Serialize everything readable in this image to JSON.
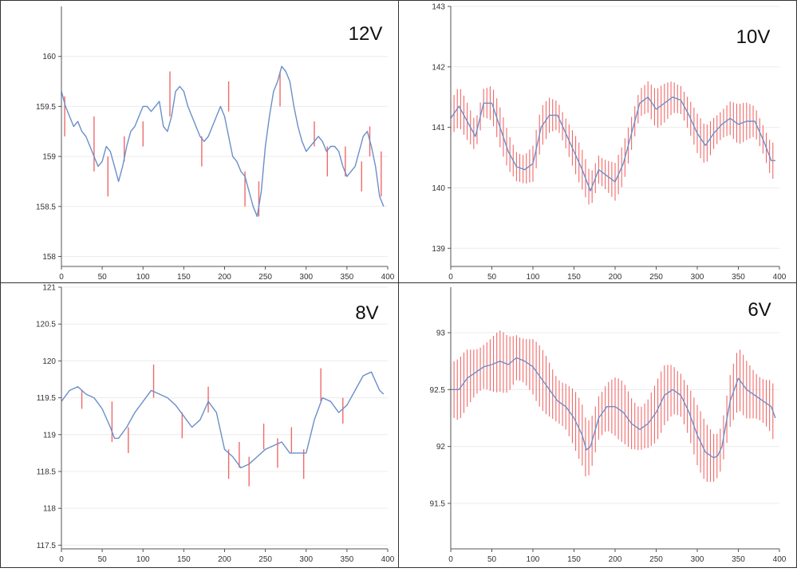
{
  "colors": {
    "background": "#ffffff",
    "axis": "#555555",
    "grid": "#ececec",
    "panel_border": "#333333",
    "mean_line": "#6b8fc9",
    "error_bars": "#f06a6a"
  },
  "chart_data": [
    {
      "type": "line",
      "title": "12V",
      "xlim": [
        0,
        400
      ],
      "ylim": [
        157.9,
        160.5
      ],
      "x_ticks": [
        0,
        50,
        100,
        150,
        200,
        250,
        300,
        350,
        400
      ],
      "y_ticks": [
        158,
        158.5,
        159,
        159.5,
        160
      ],
      "y_tick_labels": [
        "158",
        "158.5",
        "159",
        "159.5",
        "160"
      ],
      "error_style": "sparse-spikes",
      "series": [
        {
          "x": [
            0,
            5,
            10,
            15,
            20,
            25,
            30,
            35,
            40,
            45,
            50,
            55,
            60,
            65,
            70,
            75,
            80,
            85,
            90,
            95,
            100,
            105,
            110,
            115,
            120,
            125,
            130,
            135,
            140,
            145,
            150,
            155,
            160,
            165,
            170,
            175,
            180,
            185,
            190,
            195,
            200,
            205,
            210,
            215,
            220,
            225,
            230,
            235,
            240,
            245,
            250,
            255,
            260,
            265,
            270,
            275,
            280,
            285,
            290,
            295,
            300,
            305,
            310,
            315,
            320,
            325,
            330,
            335,
            340,
            345,
            350,
            355,
            360,
            365,
            370,
            375,
            380,
            385,
            390,
            395
          ],
          "y": [
            159.65,
            159.5,
            159.4,
            159.3,
            159.35,
            159.25,
            159.2,
            159.1,
            159.0,
            158.9,
            158.95,
            159.1,
            159.05,
            158.9,
            158.75,
            158.9,
            159.1,
            159.25,
            159.3,
            159.4,
            159.5,
            159.5,
            159.45,
            159.5,
            159.55,
            159.3,
            159.25,
            159.4,
            159.65,
            159.7,
            159.65,
            159.5,
            159.4,
            159.3,
            159.2,
            159.15,
            159.2,
            159.3,
            159.4,
            159.5,
            159.4,
            159.2,
            159.0,
            158.95,
            158.85,
            158.8,
            158.65,
            158.5,
            158.4,
            158.65,
            159.1,
            159.4,
            159.65,
            159.75,
            159.9,
            159.85,
            159.75,
            159.5,
            159.3,
            159.15,
            159.05,
            159.1,
            159.15,
            159.2,
            159.15,
            159.05,
            159.1,
            159.1,
            159.05,
            158.9,
            158.8,
            158.85,
            158.9,
            159.05,
            159.2,
            159.25,
            159.1,
            158.9,
            158.6,
            158.5
          ]
        }
      ],
      "error_spikes": [
        {
          "x": 4,
          "low": 159.2,
          "high": 159.6
        },
        {
          "x": 40,
          "low": 158.85,
          "high": 159.4
        },
        {
          "x": 57,
          "low": 158.6,
          "high": 159.0
        },
        {
          "x": 77,
          "low": 158.95,
          "high": 159.2
        },
        {
          "x": 100,
          "low": 159.1,
          "high": 159.35
        },
        {
          "x": 133,
          "low": 159.4,
          "high": 159.85
        },
        {
          "x": 172,
          "low": 158.9,
          "high": 159.2
        },
        {
          "x": 205,
          "low": 159.45,
          "high": 159.75
        },
        {
          "x": 225,
          "low": 158.5,
          "high": 158.85
        },
        {
          "x": 242,
          "low": 158.4,
          "high": 158.75
        },
        {
          "x": 268,
          "low": 159.5,
          "high": 159.85
        },
        {
          "x": 310,
          "low": 159.1,
          "high": 159.35
        },
        {
          "x": 326,
          "low": 158.8,
          "high": 159.1
        },
        {
          "x": 348,
          "low": 158.8,
          "high": 159.1
        },
        {
          "x": 368,
          "low": 158.65,
          "high": 158.95
        },
        {
          "x": 378,
          "low": 159.0,
          "high": 159.3
        },
        {
          "x": 392,
          "low": 158.6,
          "high": 159.05
        }
      ]
    },
    {
      "type": "line",
      "title": "10V",
      "xlim": [
        0,
        400
      ],
      "ylim": [
        138.7,
        143
      ],
      "x_ticks": [
        0,
        50,
        100,
        150,
        200,
        250,
        300,
        350,
        400
      ],
      "y_ticks": [
        139,
        140,
        141,
        142,
        143
      ],
      "y_tick_labels": [
        "139",
        "140",
        "141",
        "142",
        "143"
      ],
      "error_style": "dense",
      "error_halfwidth": 0.33,
      "series": [
        {
          "x": [
            0,
            10,
            20,
            30,
            40,
            50,
            60,
            70,
            80,
            90,
            100,
            110,
            120,
            130,
            140,
            150,
            160,
            170,
            180,
            190,
            200,
            210,
            220,
            230,
            240,
            250,
            260,
            270,
            280,
            290,
            300,
            310,
            320,
            330,
            340,
            350,
            360,
            370,
            380,
            390,
            395
          ],
          "y": [
            141.15,
            141.35,
            141.1,
            140.85,
            141.4,
            141.4,
            141.0,
            140.6,
            140.35,
            140.3,
            140.4,
            141.0,
            141.2,
            141.2,
            140.9,
            140.6,
            140.3,
            139.95,
            140.3,
            140.2,
            140.1,
            140.4,
            140.9,
            141.4,
            141.5,
            141.3,
            141.4,
            141.5,
            141.45,
            141.2,
            140.9,
            140.7,
            140.9,
            141.05,
            141.15,
            141.05,
            141.1,
            141.1,
            140.8,
            140.45,
            140.45
          ]
        }
      ]
    },
    {
      "type": "line",
      "title": "8V",
      "xlim": [
        0,
        400
      ],
      "ylim": [
        117.45,
        121
      ],
      "x_ticks": [
        0,
        50,
        100,
        150,
        200,
        250,
        300,
        350,
        400
      ],
      "y_ticks": [
        117.5,
        118,
        118.5,
        119,
        119.5,
        120,
        120.5,
        121
      ],
      "y_tick_labels": [
        "117.5",
        "118",
        "118.5",
        "119",
        "119.5",
        "120",
        "120.5",
        "121"
      ],
      "error_style": "sparse-spikes",
      "series": [
        {
          "x": [
            0,
            10,
            20,
            30,
            40,
            50,
            60,
            65,
            70,
            80,
            90,
            100,
            110,
            120,
            130,
            140,
            150,
            160,
            170,
            180,
            190,
            200,
            210,
            220,
            230,
            240,
            250,
            260,
            270,
            280,
            290,
            300,
            310,
            320,
            330,
            340,
            350,
            360,
            370,
            380,
            390,
            395
          ],
          "y": [
            119.45,
            119.6,
            119.65,
            119.55,
            119.5,
            119.35,
            119.1,
            118.95,
            118.95,
            119.1,
            119.3,
            119.45,
            119.6,
            119.55,
            119.5,
            119.4,
            119.25,
            119.1,
            119.2,
            119.45,
            119.3,
            118.8,
            118.7,
            118.55,
            118.6,
            118.7,
            118.8,
            118.85,
            118.9,
            118.75,
            118.75,
            118.75,
            119.2,
            119.5,
            119.45,
            119.3,
            119.4,
            119.6,
            119.8,
            119.85,
            119.6,
            119.55
          ]
        }
      ],
      "error_spikes": [
        {
          "x": 25,
          "low": 119.35,
          "high": 119.6
        },
        {
          "x": 62,
          "low": 118.9,
          "high": 119.45
        },
        {
          "x": 82,
          "low": 118.75,
          "high": 119.1
        },
        {
          "x": 113,
          "low": 119.5,
          "high": 119.95
        },
        {
          "x": 148,
          "low": 118.95,
          "high": 119.3
        },
        {
          "x": 180,
          "low": 119.3,
          "high": 119.65
        },
        {
          "x": 205,
          "low": 118.4,
          "high": 118.8
        },
        {
          "x": 218,
          "low": 118.55,
          "high": 118.9
        },
        {
          "x": 230,
          "low": 118.3,
          "high": 118.7
        },
        {
          "x": 248,
          "low": 118.8,
          "high": 119.15
        },
        {
          "x": 265,
          "low": 118.55,
          "high": 118.95
        },
        {
          "x": 282,
          "low": 118.75,
          "high": 119.1
        },
        {
          "x": 297,
          "low": 118.4,
          "high": 118.8
        },
        {
          "x": 318,
          "low": 119.45,
          "high": 119.9
        },
        {
          "x": 345,
          "low": 119.15,
          "high": 119.5
        }
      ]
    },
    {
      "type": "line",
      "title": "6V",
      "xlim": [
        0,
        400
      ],
      "ylim": [
        91.1,
        93.4
      ],
      "x_ticks": [
        0,
        50,
        100,
        150,
        200,
        250,
        300,
        350,
        400
      ],
      "y_ticks": [
        91.5,
        92,
        92.5,
        93
      ],
      "y_tick_labels": [
        "91.5",
        "92",
        "92.5",
        "93"
      ],
      "error_style": "dense",
      "error_halfwidth": 0.27,
      "series": [
        {
          "x": [
            0,
            10,
            20,
            30,
            40,
            50,
            60,
            70,
            80,
            90,
            100,
            110,
            120,
            130,
            140,
            150,
            160,
            165,
            170,
            180,
            190,
            200,
            210,
            220,
            230,
            240,
            250,
            260,
            270,
            280,
            290,
            300,
            310,
            320,
            325,
            330,
            340,
            350,
            360,
            370,
            380,
            390,
            395
          ],
          "y": [
            92.5,
            92.5,
            92.6,
            92.65,
            92.7,
            92.72,
            92.75,
            92.72,
            92.78,
            92.75,
            92.7,
            92.6,
            92.5,
            92.4,
            92.35,
            92.25,
            92.1,
            91.97,
            92.0,
            92.25,
            92.35,
            92.35,
            92.3,
            92.2,
            92.15,
            92.2,
            92.3,
            92.45,
            92.5,
            92.45,
            92.3,
            92.1,
            91.95,
            91.9,
            91.92,
            92.0,
            92.4,
            92.6,
            92.5,
            92.45,
            92.4,
            92.35,
            92.25
          ]
        }
      ]
    }
  ]
}
